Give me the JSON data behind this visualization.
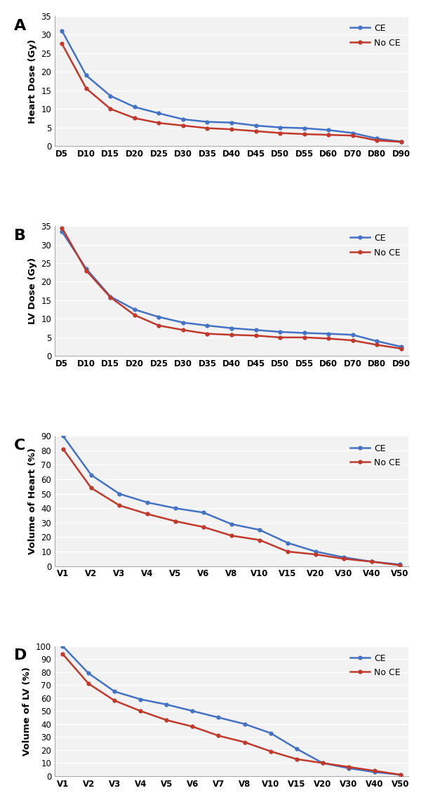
{
  "panel_A": {
    "label": "A",
    "xlabel_ticks": [
      "D5",
      "D10",
      "D15",
      "D20",
      "D25",
      "D30",
      "D35",
      "D40",
      "D45",
      "D50",
      "D55",
      "D60",
      "D70",
      "D80",
      "D90"
    ],
    "ylabel": "Heart Dose (Gy)",
    "ylim": [
      0,
      35
    ],
    "yticks": [
      0,
      5,
      10,
      15,
      20,
      25,
      30,
      35
    ],
    "CE": [
      31.0,
      19.0,
      13.5,
      10.5,
      8.8,
      7.2,
      6.5,
      6.3,
      5.5,
      5.0,
      4.8,
      4.3,
      3.5,
      2.0,
      1.2
    ],
    "NoCE": [
      27.5,
      15.5,
      10.0,
      7.5,
      6.2,
      5.5,
      4.8,
      4.5,
      4.0,
      3.5,
      3.2,
      3.0,
      2.8,
      1.5,
      1.1
    ]
  },
  "panel_B": {
    "label": "B",
    "xlabel_ticks": [
      "D5",
      "D10",
      "D15",
      "D20",
      "D25",
      "D30",
      "D35",
      "D40",
      "D45",
      "D50",
      "D55",
      "D60",
      "D70",
      "D80",
      "D90"
    ],
    "ylabel": "LV Dose (Gy)",
    "ylim": [
      0,
      35
    ],
    "yticks": [
      0,
      5,
      10,
      15,
      20,
      25,
      30,
      35
    ],
    "CE": [
      33.5,
      23.5,
      16.0,
      12.5,
      10.5,
      9.0,
      8.2,
      7.5,
      7.0,
      6.5,
      6.2,
      6.0,
      5.7,
      4.0,
      2.5
    ],
    "NoCE": [
      34.5,
      23.0,
      15.8,
      11.0,
      8.2,
      7.0,
      6.0,
      5.7,
      5.5,
      5.0,
      5.0,
      4.7,
      4.2,
      3.0,
      2.0
    ]
  },
  "panel_C": {
    "label": "C",
    "xlabel_ticks": [
      "V1",
      "V2",
      "V3",
      "V4",
      "V5",
      "V6",
      "V8",
      "V10",
      "V15",
      "V20",
      "V30",
      "V40",
      "V50"
    ],
    "ylabel": "Volume of Heart (%)",
    "ylim": [
      0,
      90
    ],
    "yticks": [
      0,
      10,
      20,
      30,
      40,
      50,
      60,
      70,
      80,
      90
    ],
    "CE": [
      90,
      63,
      50,
      44,
      40,
      37,
      29,
      25,
      16,
      10,
      6,
      3,
      1
    ],
    "NoCE": [
      81,
      54,
      42,
      36,
      31,
      27,
      21,
      18,
      10,
      8,
      5,
      3,
      0.5
    ]
  },
  "panel_D": {
    "label": "D",
    "xlabel_ticks": [
      "V1",
      "V2",
      "V3",
      "V4",
      "V5",
      "V6",
      "V7",
      "V8",
      "V10",
      "V15",
      "V20",
      "V30",
      "V40",
      "V50"
    ],
    "ylabel": "Volume of LV (%)",
    "ylim": [
      0,
      100
    ],
    "yticks": [
      0,
      10,
      20,
      30,
      40,
      50,
      60,
      70,
      80,
      90,
      100
    ],
    "CE": [
      100,
      79,
      65,
      59,
      55,
      50,
      45,
      40,
      33,
      21,
      10,
      6,
      3,
      1
    ],
    "NoCE": [
      94,
      71,
      58,
      50,
      43,
      38,
      31,
      26,
      19,
      13,
      10,
      7,
      4,
      1
    ]
  },
  "CE_color": "#4472c4",
  "NoCE_color": "#c0392b",
  "plot_bg": "#f2f2f2",
  "fig_bg": "#ffffff",
  "grid_color": "#ffffff",
  "legend_CE": "CE",
  "legend_NoCE": "No CE"
}
